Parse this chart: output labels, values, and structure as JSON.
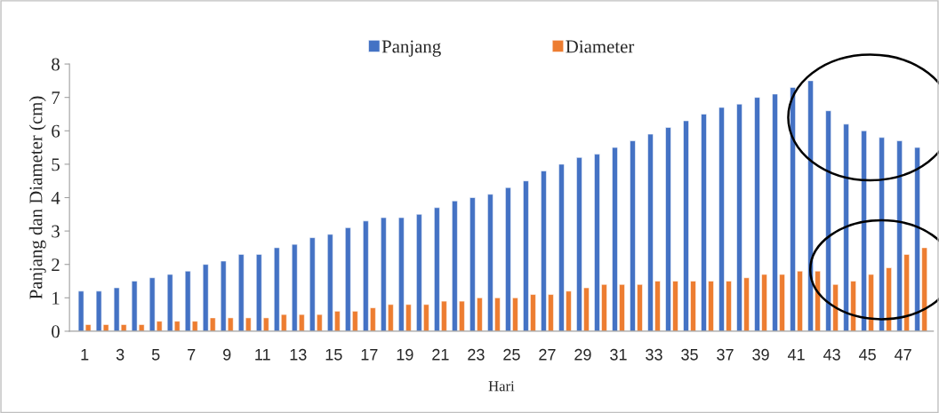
{
  "chart_data": {
    "type": "bar",
    "xlabel": "Hari",
    "ylabel": "Panjang dan Diameter (cm)",
    "categories": [
      "1",
      null,
      "3",
      null,
      "5",
      null,
      "7",
      null,
      "9",
      null,
      "11",
      null,
      "13",
      null,
      "15",
      null,
      "17",
      null,
      "19",
      null,
      "21",
      null,
      "23",
      null,
      "25",
      null,
      "27",
      null,
      "29",
      null,
      "31",
      null,
      "33",
      null,
      "35",
      null,
      "37",
      null,
      "39",
      null,
      "41",
      null,
      "43",
      null,
      "45",
      null,
      "47",
      null
    ],
    "series": [
      {
        "name": "Panjang",
        "color": "#4472c4",
        "values": [
          1.2,
          1.2,
          1.3,
          1.5,
          1.6,
          1.7,
          1.8,
          2.0,
          2.1,
          2.3,
          2.3,
          2.5,
          2.6,
          2.8,
          2.9,
          3.1,
          3.3,
          3.4,
          3.4,
          3.5,
          3.7,
          3.9,
          4.0,
          4.1,
          4.3,
          4.5,
          4.8,
          5.0,
          5.2,
          5.3,
          5.5,
          5.7,
          5.9,
          6.1,
          6.3,
          6.5,
          6.7,
          6.8,
          7.0,
          7.1,
          7.3,
          7.5,
          6.6,
          6.2,
          6.0,
          5.8,
          5.7,
          5.5
        ]
      },
      {
        "name": "Diameter",
        "color": "#ed7d31",
        "values": [
          0.2,
          0.2,
          0.2,
          0.2,
          0.3,
          0.3,
          0.3,
          0.4,
          0.4,
          0.4,
          0.4,
          0.5,
          0.5,
          0.5,
          0.6,
          0.6,
          0.7,
          0.8,
          0.8,
          0.8,
          0.9,
          0.9,
          1.0,
          1.0,
          1.0,
          1.1,
          1.1,
          1.2,
          1.3,
          1.4,
          1.4,
          1.4,
          1.5,
          1.5,
          1.5,
          1.5,
          1.5,
          1.6,
          1.7,
          1.7,
          1.8,
          1.8,
          1.4,
          1.5,
          1.7,
          1.9,
          2.3,
          2.5
        ]
      }
    ],
    "ylim": [
      0,
      8
    ],
    "yticks": [
      0,
      1,
      2,
      3,
      4,
      5,
      6,
      7,
      8
    ],
    "grid": false,
    "legend": "top"
  }
}
